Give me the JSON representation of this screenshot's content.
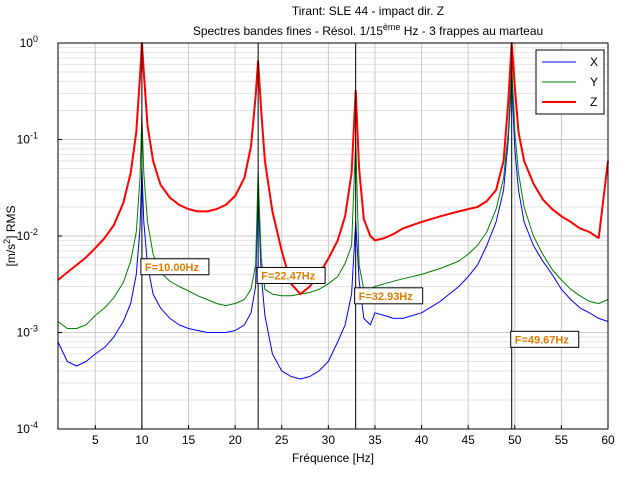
{
  "chart_data": {
    "type": "line",
    "title": "Tirant: SLE 44 - impact dir. Z",
    "subtitle": {
      "prefix": "Spectres bandes fines - Résol. 1/15",
      "superscript": "ème",
      "suffix": " Hz - 3 frappes au marteau"
    },
    "xlabel": "Fréquence [Hz]",
    "ylabel": {
      "prefix": "[m/s",
      "superscript": "2",
      "suffix": "] RMS"
    },
    "xlim": [
      1,
      60
    ],
    "ylim": [
      0.0001,
      1
    ],
    "yscale": "log",
    "xticks": [
      5,
      10,
      15,
      20,
      25,
      30,
      35,
      40,
      45,
      50,
      55,
      60
    ],
    "xtick_labels": [
      "5",
      "10",
      "15",
      "20",
      "25",
      "30",
      "35",
      "40",
      "45",
      "50",
      "55",
      "60"
    ],
    "yticks": [
      {
        "value": 0.0001,
        "base": "10",
        "exp": "-4"
      },
      {
        "value": 0.001,
        "base": "10",
        "exp": "-3"
      },
      {
        "value": 0.01,
        "base": "10",
        "exp": "-2"
      },
      {
        "value": 0.1,
        "base": "10",
        "exp": "-1"
      },
      {
        "value": 1,
        "base": "10",
        "exp": "0"
      }
    ],
    "grid": true,
    "legend_position": "top-right",
    "series": [
      {
        "name": "X",
        "color": "#0000ff",
        "x": [
          1,
          2,
          3,
          4,
          5,
          6,
          7,
          8,
          8.8,
          9.4,
          9.8,
          10,
          10.2,
          10.6,
          11.2,
          12,
          13,
          14,
          15,
          16,
          17,
          18,
          19,
          20,
          21,
          21.7,
          22.2,
          22.47,
          22.8,
          23.2,
          24,
          25,
          26,
          27,
          28,
          29,
          30,
          31,
          31.8,
          32.5,
          32.93,
          33.3,
          33.8,
          34.5,
          35,
          36,
          37,
          38,
          40,
          42,
          44,
          45,
          46,
          47,
          48,
          48.8,
          49.3,
          49.67,
          50,
          50.4,
          51,
          52,
          53,
          54,
          55,
          56,
          57,
          58,
          59,
          60
        ],
        "y": [
          0.0008,
          0.0005,
          0.00045,
          0.0005,
          0.0006,
          0.0007,
          0.0009,
          0.0013,
          0.002,
          0.004,
          0.012,
          0.05,
          0.014,
          0.005,
          0.0025,
          0.0018,
          0.0014,
          0.0012,
          0.0011,
          0.00105,
          0.001,
          0.001,
          0.001,
          0.00105,
          0.0012,
          0.0016,
          0.003,
          0.028,
          0.004,
          0.0015,
          0.0006,
          0.0004,
          0.00035,
          0.00033,
          0.00035,
          0.0004,
          0.0005,
          0.0008,
          0.0012,
          0.0025,
          0.014,
          0.0035,
          0.0014,
          0.0012,
          0.0016,
          0.0015,
          0.0014,
          0.0014,
          0.0016,
          0.0021,
          0.003,
          0.0038,
          0.005,
          0.008,
          0.014,
          0.03,
          0.1,
          0.42,
          0.08,
          0.03,
          0.014,
          0.008,
          0.0055,
          0.004,
          0.0028,
          0.0022,
          0.0018,
          0.0016,
          0.0014,
          0.0013
        ]
      },
      {
        "name": "Y",
        "color": "#008000",
        "x": [
          1,
          2,
          3,
          4,
          5,
          6,
          7,
          8,
          8.8,
          9.4,
          9.8,
          10,
          10.2,
          10.6,
          11.2,
          12,
          13,
          14,
          15,
          16,
          17,
          18,
          19,
          20,
          21,
          21.7,
          22.2,
          22.47,
          22.8,
          23.2,
          24,
          25,
          26,
          27,
          28,
          29,
          30,
          31,
          31.8,
          32.5,
          32.93,
          33.3,
          33.8,
          34.5,
          35,
          36,
          37,
          38,
          40,
          42,
          44,
          45,
          46,
          47,
          48,
          48.8,
          49.3,
          49.67,
          50,
          50.4,
          51,
          52,
          53,
          54,
          55,
          56,
          57,
          58,
          59,
          60
        ],
        "y": [
          0.0013,
          0.0011,
          0.0011,
          0.0012,
          0.0015,
          0.0018,
          0.0023,
          0.0033,
          0.0055,
          0.011,
          0.04,
          0.18,
          0.045,
          0.014,
          0.0065,
          0.0042,
          0.0034,
          0.003,
          0.0027,
          0.0024,
          0.0022,
          0.002,
          0.0019,
          0.002,
          0.0022,
          0.0028,
          0.005,
          0.045,
          0.006,
          0.0028,
          0.0025,
          0.0024,
          0.0024,
          0.0025,
          0.0026,
          0.0028,
          0.0032,
          0.0038,
          0.0052,
          0.008,
          0.1,
          0.005,
          0.0028,
          0.0028,
          0.003,
          0.0032,
          0.0034,
          0.0036,
          0.004,
          0.0046,
          0.0055,
          0.0065,
          0.008,
          0.011,
          0.019,
          0.04,
          0.12,
          0.6,
          0.12,
          0.045,
          0.02,
          0.01,
          0.0065,
          0.0045,
          0.0035,
          0.0028,
          0.0024,
          0.0021,
          0.002,
          0.0022
        ]
      },
      {
        "name": "Z",
        "color": "#ff0000",
        "x": [
          1,
          2,
          3,
          4,
          5,
          6,
          7,
          8,
          8.8,
          9.4,
          9.8,
          10,
          10.2,
          10.6,
          11.2,
          12,
          13,
          14,
          15,
          16,
          17,
          18,
          19,
          20,
          21,
          21.7,
          22.2,
          22.47,
          22.8,
          23.2,
          24,
          25,
          26,
          27,
          28,
          29,
          30,
          31,
          31.8,
          32.5,
          32.93,
          33.3,
          33.8,
          34.5,
          35,
          36,
          37,
          38,
          40,
          42,
          44,
          45,
          46,
          47,
          48,
          48.8,
          49.3,
          49.67,
          50,
          50.4,
          51,
          52,
          53,
          54,
          55,
          56,
          57,
          58,
          59,
          60
        ],
        "y": [
          0.0035,
          0.0042,
          0.005,
          0.006,
          0.0075,
          0.0095,
          0.013,
          0.022,
          0.045,
          0.12,
          0.45,
          1.0,
          0.5,
          0.14,
          0.06,
          0.034,
          0.025,
          0.021,
          0.019,
          0.018,
          0.018,
          0.019,
          0.021,
          0.026,
          0.04,
          0.085,
          0.28,
          0.65,
          0.2,
          0.06,
          0.018,
          0.007,
          0.0032,
          0.0025,
          0.003,
          0.004,
          0.0058,
          0.009,
          0.016,
          0.045,
          0.32,
          0.05,
          0.015,
          0.01,
          0.009,
          0.0095,
          0.0105,
          0.012,
          0.014,
          0.016,
          0.018,
          0.019,
          0.02,
          0.023,
          0.03,
          0.06,
          0.25,
          1.0,
          0.35,
          0.12,
          0.06,
          0.035,
          0.024,
          0.019,
          0.016,
          0.014,
          0.012,
          0.011,
          0.0095,
          0.06
        ]
      }
    ],
    "markers": [
      {
        "x": 10.0,
        "label": "F=10.00Hz",
        "label_y": 0.0048
      },
      {
        "x": 22.47,
        "label": "F=22.47Hz",
        "label_y": 0.0039
      },
      {
        "x": 32.93,
        "label": "F=32.93Hz",
        "label_y": 0.0024
      },
      {
        "x": 49.67,
        "label": "F=49.67Hz",
        "label_y": 0.00085
      }
    ],
    "marker_label_color": "#e07b00"
  }
}
